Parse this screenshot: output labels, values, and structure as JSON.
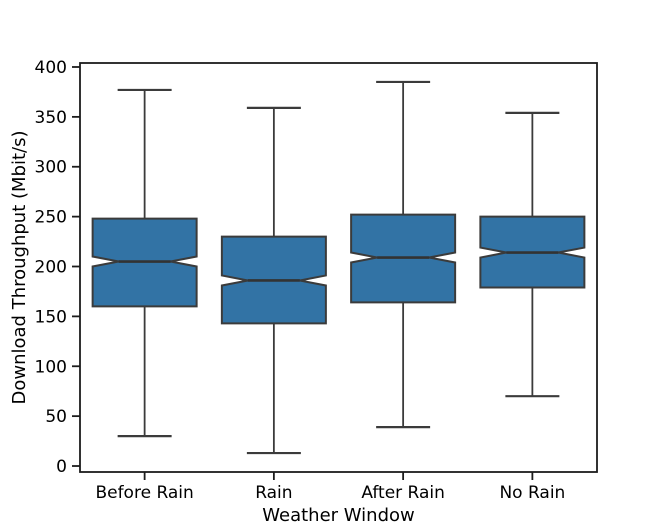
{
  "chart_data": {
    "type": "box",
    "title": "",
    "xlabel": "Weather Window",
    "ylabel": "Download Throughput (Mbit/s)",
    "categories": [
      "Before Rain",
      "Rain",
      "After Rain",
      "No Rain"
    ],
    "yticks": [
      "0",
      "50",
      "100",
      "150",
      "200",
      "250",
      "300",
      "350",
      "400"
    ],
    "ytick_values": [
      0,
      50,
      100,
      150,
      200,
      250,
      300,
      350,
      400
    ],
    "ylim": [
      -6,
      404
    ],
    "grid": false,
    "legend": null,
    "notched": true,
    "boxes": [
      {
        "category": "Before Rain",
        "whisker_low": 30,
        "q1": 160,
        "median": 205,
        "q3": 248,
        "whisker_high": 377,
        "notch_low": 200,
        "notch_high": 210
      },
      {
        "category": "Rain",
        "whisker_low": 13,
        "q1": 143,
        "median": 186,
        "q3": 230,
        "whisker_high": 359,
        "notch_low": 181,
        "notch_high": 191
      },
      {
        "category": "After Rain",
        "whisker_low": 39,
        "q1": 164,
        "median": 209,
        "q3": 252,
        "whisker_high": 385,
        "notch_low": 204,
        "notch_high": 214
      },
      {
        "category": "No Rain",
        "whisker_low": 70,
        "q1": 179,
        "median": 214,
        "q3": 250,
        "whisker_high": 354,
        "notch_low": 209,
        "notch_high": 219
      }
    ],
    "colors": {
      "box_fill": "#3273a5",
      "box_edge": "#3b3b3b",
      "whisker": "#3b3b3b",
      "median": "#333333",
      "axis": "#1c1c1c",
      "background": "#ffffff"
    }
  }
}
